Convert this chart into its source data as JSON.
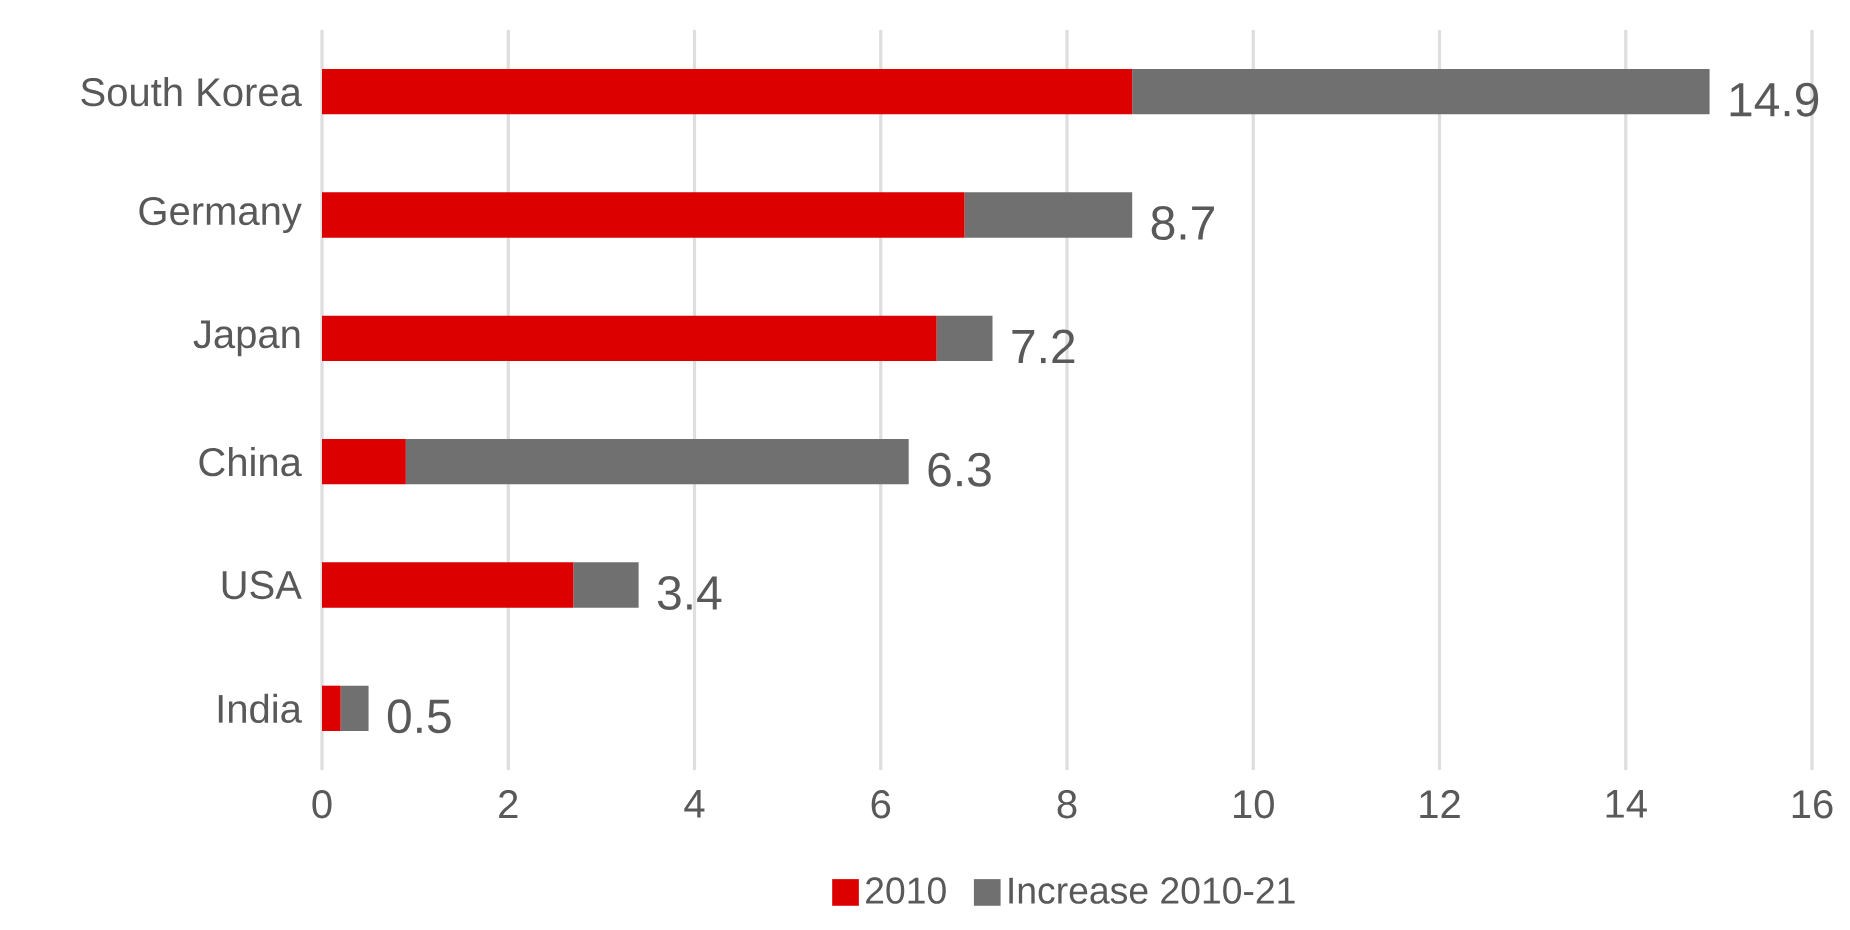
{
  "chart_data": {
    "type": "bar",
    "orientation": "horizontal",
    "stacked": true,
    "categories": [
      "South Korea",
      "Germany",
      "Japan",
      "China",
      "USA",
      "India"
    ],
    "series": [
      {
        "name": "2010",
        "color": "#dc0000",
        "values": [
          8.7,
          6.9,
          6.6,
          0.9,
          2.7,
          0.2
        ]
      },
      {
        "name": "Increase 2010-21",
        "color": "#707070",
        "values": [
          6.2,
          1.8,
          0.6,
          5.4,
          0.7,
          0.3
        ]
      }
    ],
    "totals": [
      "14.9",
      "8.7",
      "7.2",
      "6.3",
      "3.4",
      "0.5"
    ],
    "xlim": [
      0,
      16
    ],
    "xticks": [
      0,
      2,
      4,
      6,
      8,
      10,
      12,
      14,
      16
    ],
    "grid": "x",
    "legend": "bottom"
  }
}
